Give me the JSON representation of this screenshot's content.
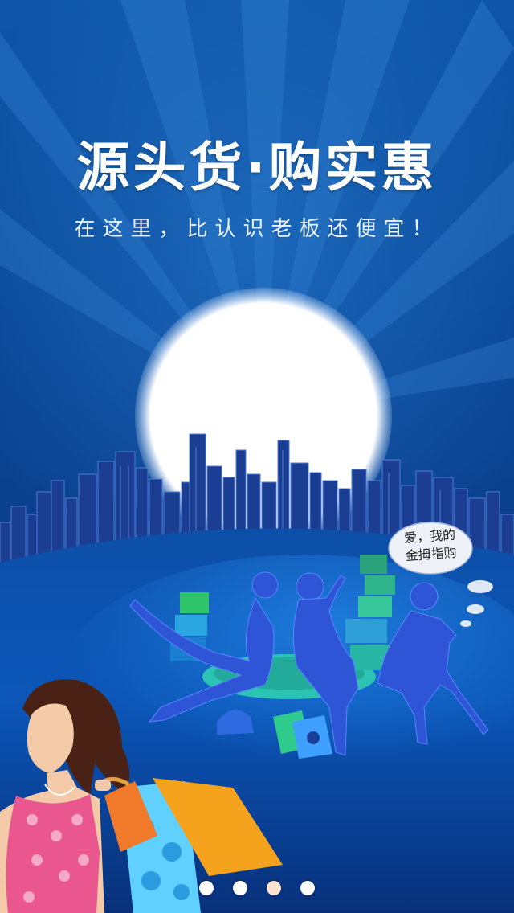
{
  "splash": {
    "headline": "源头货·购实惠",
    "subheadline": "在这里，比认识老板还便宜！",
    "speech_bubble": {
      "line1": "爱，我的",
      "line2": "金拇指购"
    }
  },
  "pager": {
    "total": 4,
    "active_index": 2
  },
  "colors": {
    "background_top": "#0f56a8",
    "background_bottom": "#0a3a84",
    "moon": "#ffffff",
    "skyline": "#1a3f94",
    "silhouette": "#2550c8",
    "text": "#ffffff"
  }
}
